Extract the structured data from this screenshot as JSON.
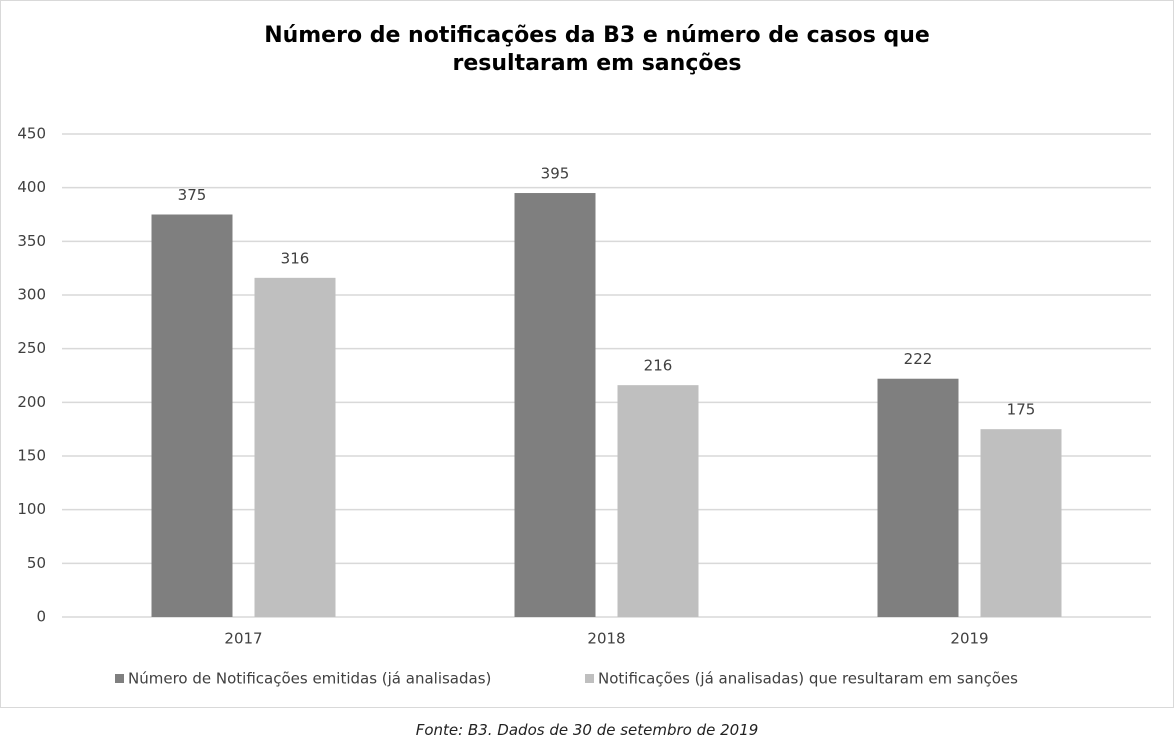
{
  "chart_data": {
    "type": "bar",
    "title": "Número de notificações da B3 e número de casos que resultaram em sanções",
    "categories": [
      "2017",
      "2018",
      "2019"
    ],
    "series": [
      {
        "name": "Número de Notificações emitidas (já analisadas)",
        "color": "#7f7f7f",
        "values": [
          375,
          395,
          222
        ]
      },
      {
        "name": "Notificações (já analisadas) que resultaram em sanções",
        "color": "#bfbfbf",
        "values": [
          316,
          216,
          175
        ]
      }
    ],
    "ylim": [
      0,
      450
    ],
    "yticks": [
      0,
      50,
      100,
      150,
      200,
      250,
      300,
      350,
      400,
      450
    ],
    "grid": true,
    "legend": "bottom",
    "source": "Fonte: B3. Dados de 30 de setembro de 2019"
  }
}
